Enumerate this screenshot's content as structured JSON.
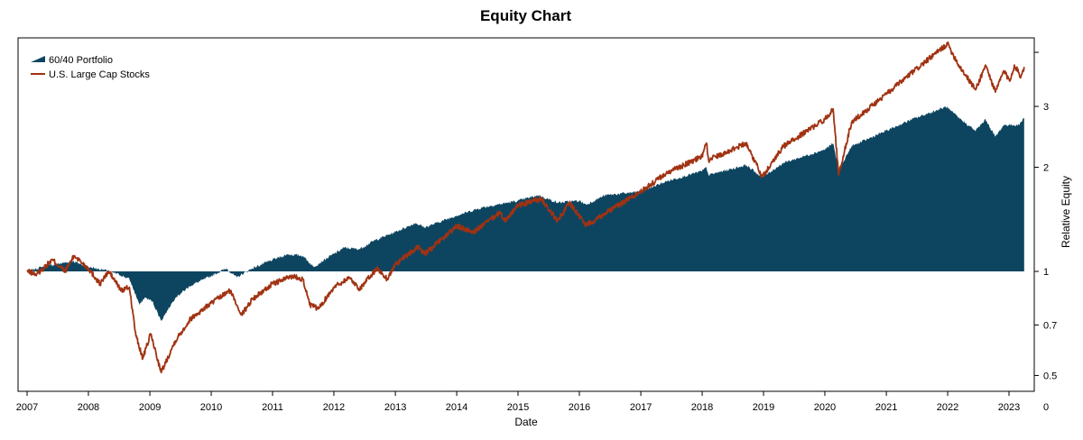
{
  "chart_data": {
    "type": "area",
    "title": "Equity Chart",
    "xlabel": "Date",
    "ylabel": "Relative Equity",
    "y_scale": "log",
    "ylim": [
      0.45,
      5.0
    ],
    "baseline": 1,
    "x_ticks": [
      "2007",
      "2008",
      "2009",
      "2010",
      "2011",
      "2012",
      "2013",
      "2014",
      "2015",
      "2016",
      "2017",
      "2018",
      "2019",
      "2020",
      "2021",
      "2022",
      "2023"
    ],
    "y_ticks": [
      {
        "value": 3,
        "label": "3"
      },
      {
        "value": 2,
        "label": "2"
      },
      {
        "value": 1,
        "label": "1"
      },
      {
        "value": 0.7,
        "label": "0.7"
      },
      {
        "value": 0.5,
        "label": "0.5"
      },
      {
        "value": 0.45,
        "label": "0"
      }
    ],
    "legend_position": "top-left",
    "grid": false,
    "series": [
      {
        "name": "60/40 Portfolio",
        "kind": "area",
        "color": "#0d4560",
        "points": [
          [
            "2007-01-01",
            1.0
          ],
          [
            "2007-04-01",
            1.03
          ],
          [
            "2007-07-01",
            1.05
          ],
          [
            "2007-10-01",
            1.07
          ],
          [
            "2008-01-01",
            1.03
          ],
          [
            "2008-04-01",
            1.01
          ],
          [
            "2008-07-01",
            0.98
          ],
          [
            "2008-09-01",
            0.95
          ],
          [
            "2008-11-01",
            0.8
          ],
          [
            "2008-12-01",
            0.84
          ],
          [
            "2009-01-15",
            0.82
          ],
          [
            "2009-03-09",
            0.72
          ],
          [
            "2009-06-01",
            0.84
          ],
          [
            "2009-09-01",
            0.91
          ],
          [
            "2010-01-01",
            0.97
          ],
          [
            "2010-04-01",
            1.02
          ],
          [
            "2010-06-01",
            0.96
          ],
          [
            "2010-09-01",
            1.02
          ],
          [
            "2011-01-01",
            1.08
          ],
          [
            "2011-04-01",
            1.12
          ],
          [
            "2011-07-01",
            1.11
          ],
          [
            "2011-09-01",
            1.03
          ],
          [
            "2011-12-01",
            1.1
          ],
          [
            "2012-03-01",
            1.17
          ],
          [
            "2012-06-01",
            1.16
          ],
          [
            "2012-09-01",
            1.23
          ],
          [
            "2013-01-01",
            1.3
          ],
          [
            "2013-05-01",
            1.38
          ],
          [
            "2013-06-25",
            1.34
          ],
          [
            "2013-12-31",
            1.45
          ],
          [
            "2014-06-01",
            1.53
          ],
          [
            "2014-12-31",
            1.6
          ],
          [
            "2015-05-01",
            1.66
          ],
          [
            "2015-08-25",
            1.58
          ],
          [
            "2015-12-31",
            1.6
          ],
          [
            "2016-02-11",
            1.56
          ],
          [
            "2016-06-01",
            1.66
          ],
          [
            "2016-12-31",
            1.7
          ],
          [
            "2017-06-01",
            1.82
          ],
          [
            "2017-12-31",
            1.95
          ],
          [
            "2018-01-26",
            2.0
          ],
          [
            "2018-02-08",
            1.9
          ],
          [
            "2018-09-20",
            2.03
          ],
          [
            "2018-12-24",
            1.87
          ],
          [
            "2019-04-30",
            2.06
          ],
          [
            "2019-12-31",
            2.25
          ],
          [
            "2020-02-19",
            2.35
          ],
          [
            "2020-03-23",
            1.96
          ],
          [
            "2020-06-08",
            2.3
          ],
          [
            "2020-12-31",
            2.55
          ],
          [
            "2021-06-01",
            2.75
          ],
          [
            "2021-12-31",
            3.0
          ],
          [
            "2022-01-05",
            2.95
          ],
          [
            "2022-03-08",
            2.78
          ],
          [
            "2022-06-16",
            2.55
          ],
          [
            "2022-08-15",
            2.75
          ],
          [
            "2022-10-12",
            2.45
          ],
          [
            "2022-12-01",
            2.65
          ],
          [
            "2023-03-01",
            2.65
          ],
          [
            "2023-04-01",
            2.78
          ]
        ]
      },
      {
        "name": "U.S. Large Cap Stocks",
        "kind": "line",
        "color": "#a03212",
        "points": [
          [
            "2007-01-01",
            1.0
          ],
          [
            "2007-02-27",
            0.98
          ],
          [
            "2007-06-01",
            1.08
          ],
          [
            "2007-08-15",
            1.0
          ],
          [
            "2007-10-09",
            1.11
          ],
          [
            "2008-01-01",
            1.02
          ],
          [
            "2008-03-10",
            0.92
          ],
          [
            "2008-05-01",
            1.0
          ],
          [
            "2008-07-15",
            0.88
          ],
          [
            "2008-09-01",
            0.9
          ],
          [
            "2008-10-10",
            0.65
          ],
          [
            "2008-11-20",
            0.56
          ],
          [
            "2009-01-06",
            0.66
          ],
          [
            "2009-03-09",
            0.51
          ],
          [
            "2009-06-01",
            0.63
          ],
          [
            "2009-09-01",
            0.73
          ],
          [
            "2010-01-01",
            0.81
          ],
          [
            "2010-04-23",
            0.88
          ],
          [
            "2010-07-02",
            0.75
          ],
          [
            "2010-09-01",
            0.83
          ],
          [
            "2011-01-01",
            0.92
          ],
          [
            "2011-04-29",
            0.97
          ],
          [
            "2011-07-01",
            0.95
          ],
          [
            "2011-08-10",
            0.8
          ],
          [
            "2011-10-03",
            0.78
          ],
          [
            "2011-12-31",
            0.9
          ],
          [
            "2012-04-02",
            0.96
          ],
          [
            "2012-06-01",
            0.89
          ],
          [
            "2012-09-14",
            1.02
          ],
          [
            "2012-11-15",
            0.95
          ],
          [
            "2013-01-01",
            1.05
          ],
          [
            "2013-05-21",
            1.18
          ],
          [
            "2013-06-24",
            1.12
          ],
          [
            "2013-12-31",
            1.35
          ],
          [
            "2014-04-11",
            1.3
          ],
          [
            "2014-09-18",
            1.48
          ],
          [
            "2014-10-15",
            1.4
          ],
          [
            "2014-12-31",
            1.55
          ],
          [
            "2015-05-21",
            1.62
          ],
          [
            "2015-08-25",
            1.4
          ],
          [
            "2015-11-03",
            1.58
          ],
          [
            "2016-02-11",
            1.36
          ],
          [
            "2016-06-27",
            1.5
          ],
          [
            "2016-12-31",
            1.7
          ],
          [
            "2017-06-01",
            1.92
          ],
          [
            "2017-12-31",
            2.15
          ],
          [
            "2018-01-26",
            2.35
          ],
          [
            "2018-02-08",
            2.1
          ],
          [
            "2018-09-20",
            2.35
          ],
          [
            "2018-12-24",
            1.88
          ],
          [
            "2019-04-30",
            2.3
          ],
          [
            "2019-12-31",
            2.75
          ],
          [
            "2020-02-19",
            2.95
          ],
          [
            "2020-03-23",
            1.9
          ],
          [
            "2020-06-08",
            2.7
          ],
          [
            "2020-12-31",
            3.25
          ],
          [
            "2021-06-01",
            3.75
          ],
          [
            "2021-12-31",
            4.55
          ],
          [
            "2022-03-08",
            3.95
          ],
          [
            "2022-06-16",
            3.35
          ],
          [
            "2022-08-15",
            3.95
          ],
          [
            "2022-10-12",
            3.3
          ],
          [
            "2022-12-01",
            3.8
          ],
          [
            "2023-01-05",
            3.55
          ],
          [
            "2023-02-02",
            3.95
          ],
          [
            "2023-03-13",
            3.65
          ],
          [
            "2023-04-01",
            3.9
          ]
        ]
      }
    ]
  }
}
